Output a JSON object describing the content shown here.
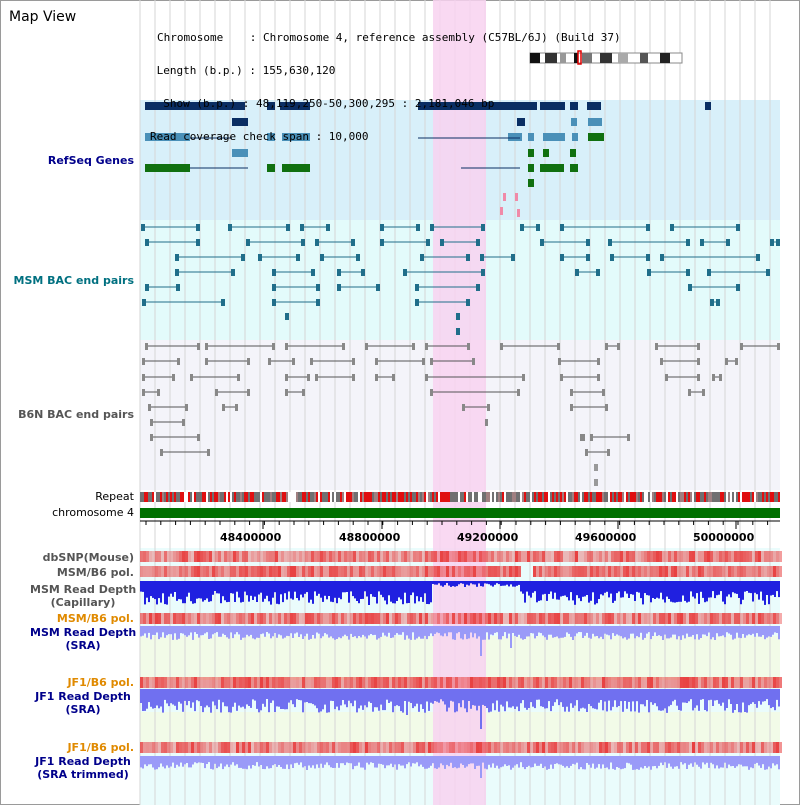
{
  "page": {
    "title": "Map View"
  },
  "info": {
    "chromosome_line": "Chromosome    : Chromosome 4, reference assembly (C57BL/6J) (Build 37)",
    "length_line": " Length (b.p.) : 155,630,120",
    "show_line": "  Show (b.p.) : 48,119,250-50,300,295 : 2,181,046 bp",
    "coverage_line": "Read coverage check span : 10,000"
  },
  "tracks": {
    "refseq": "RefSeq Genes",
    "msm_bac": "MSM BAC end pairs",
    "b6n_bac": "B6N BAC end pairs",
    "repeat": "Repeat",
    "chromosome": "chromosome 4",
    "dbsnp": "dbSNP(Mouse)",
    "msm_b6_pol_1": "MSM/B6 pol.",
    "msm_read_depth_cap_1": "MSM Read Depth",
    "msm_read_depth_cap_2": "(Capillary)",
    "msm_b6_pol_2": "MSM/B6 pol.",
    "msm_read_depth_sra_1": "MSM Read Depth",
    "msm_read_depth_sra_2": "(SRA)",
    "jf1_b6_pol_1": "JF1/B6 pol.",
    "jf1_read_depth_sra_1": "JF1 Read Depth",
    "jf1_read_depth_sra_2": "(SRA)",
    "jf1_b6_pol_2": "JF1/B6 pol.",
    "jf1_read_depth_trim_1": "JF1 Read Depth",
    "jf1_read_depth_trim_2": "(SRA trimmed)"
  },
  "axis": {
    "ticks": [
      "48400000",
      "48800000",
      "49200000",
      "49600000",
      "50000000"
    ]
  },
  "colors": {
    "highlight": "#f8d2f0",
    "refseq_bg": "#d8f0fa",
    "msm_bg": "#e3fbfb",
    "b6n_bg": "#f4f4fa",
    "gene_navy": "#0a2e63",
    "gene_blue": "#4a90b8",
    "gene_green": "#107010",
    "bac_teal": "#206e8a",
    "bac_gray": "#555555",
    "chromosome_bar": "#007000",
    "snp_red": "#e84040",
    "depth_blue": "#2020e0",
    "depth_lilac": "#7070f0"
  }
}
